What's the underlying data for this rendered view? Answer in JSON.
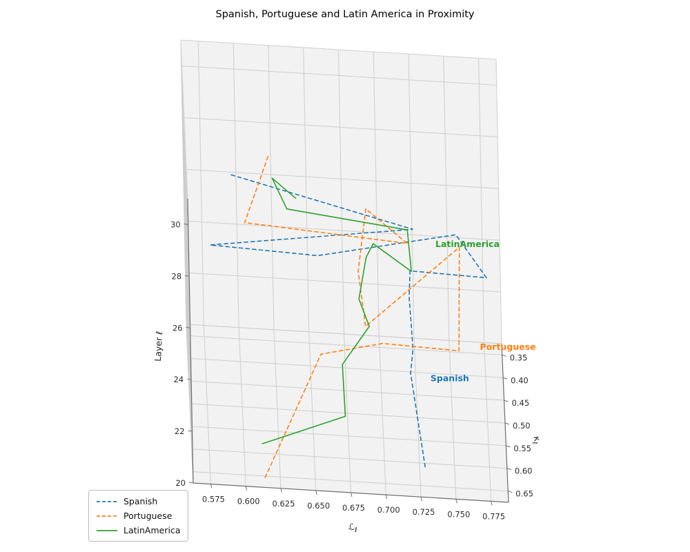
{
  "title": "Spanish, Portuguese and Latin America in Proximity",
  "chart_data": {
    "type": "line",
    "projection": "3d",
    "title": "Spanish, Portuguese and Latin America in Proximity",
    "xlabel": "ℒℓ",
    "ylabel": "κℓ",
    "zlabel": "Layer ℓ",
    "xlim": [
      0.5625,
      0.7875
    ],
    "ylim": [
      0.325,
      0.675
    ],
    "zlim": [
      20,
      31
    ],
    "x_ticks": [
      "0.575",
      "0.600",
      "0.625",
      "0.650",
      "0.675",
      "0.700",
      "0.725",
      "0.750",
      "0.775"
    ],
    "y_ticks": [
      "0.35",
      "0.40",
      "0.45",
      "0.50",
      "0.55",
      "0.60",
      "0.65"
    ],
    "z_ticks": [
      "20",
      "22",
      "24",
      "26",
      "28",
      "30"
    ],
    "grid": true,
    "layers": [
      20,
      21,
      22,
      23,
      24,
      25,
      26,
      27,
      28,
      29,
      30,
      31
    ],
    "series": [
      {
        "name": "Spanish",
        "color": "#1f77b4",
        "linestyle": "dashed",
        "L": [
          0.729,
          0.721,
          0.723,
          0.722,
          0.721,
          0.722,
          0.776,
          0.755,
          0.655,
          0.578,
          0.723,
          0.594
        ],
        "kappa": [
          0.609,
          0.46,
          0.463,
          0.461,
          0.464,
          0.462,
          0.524,
          0.49,
          0.612,
          0.66,
          0.655,
          0.616
        ],
        "label_at": [
          0.735,
          0.475,
          21
        ]
      },
      {
        "name": "Portuguese",
        "color": "#ff7f0e",
        "linestyle": "dashed",
        "L": [
          0.614,
          0.638,
          0.657,
          0.701,
          0.755,
          0.758,
          0.688,
          0.684,
          0.691,
          0.719,
          0.603,
          0.622
        ],
        "kappa": [
          0.654,
          0.555,
          0.487,
          0.512,
          0.575,
          0.403,
          0.648,
          0.584,
          0.502,
          0.63,
          0.663,
          0.565
        ],
        "label_at": [
          0.77,
          0.57,
          24
        ]
      },
      {
        "name": "LatinAmerica",
        "color": "#2ca02c",
        "linestyle": "solid",
        "L": [
          0.613,
          0.673,
          0.672,
          0.692,
          0.685,
          0.691,
          0.696,
          0.722,
          0.72,
          0.634,
          0.624,
          0.64
        ],
        "kappa": [
          0.579,
          0.564,
          0.507,
          0.476,
          0.474,
          0.438,
          0.464,
          0.577,
          0.543,
          0.57,
          0.561,
          0.66
        ],
        "label_at": [
          0.74,
          0.52,
          27
        ]
      }
    ],
    "legend": {
      "location": "lower left",
      "entries": [
        "Spanish",
        "Portuguese",
        "LatinAmerica"
      ]
    }
  },
  "colors": {
    "pane": "#f2f2f2",
    "grid": "#cdcdcd",
    "box_edge": "#d4d4d4",
    "spine": "#6e6e6e",
    "tick_text": "#2b2b2b"
  }
}
